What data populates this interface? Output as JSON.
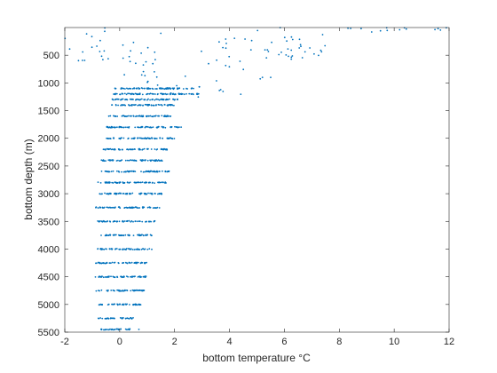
{
  "chart_data": {
    "type": "scatter",
    "title": "",
    "xlabel": "bottom temperature °C",
    "ylabel": "bottom depth (m)",
    "xlim": [
      -2,
      12
    ],
    "ylim": [
      0,
      5500
    ],
    "y_reversed": true,
    "grid": false,
    "legend": "none",
    "x_ticks": [
      -2,
      0,
      2,
      4,
      6,
      8,
      10,
      12
    ],
    "y_ticks": [
      500,
      1000,
      1500,
      2000,
      2500,
      3000,
      3500,
      4000,
      4500,
      5000,
      5500
    ],
    "marker_color": "#0072BD",
    "series": [
      {
        "description": "dense horizontal bands of observations, approximate x-extent per depth level",
        "bands": [
          {
            "depth": 1100,
            "xmin": -0.2,
            "xmax": 2.7
          },
          {
            "depth": 1200,
            "xmin": -0.3,
            "xmax": 2.9
          },
          {
            "depth": 1300,
            "xmin": -0.3,
            "xmax": 2.2
          },
          {
            "depth": 1400,
            "xmin": -0.3,
            "xmax": 2.0
          },
          {
            "depth": 1600,
            "xmin": -0.4,
            "xmax": 1.9
          },
          {
            "depth": 1800,
            "xmin": -0.5,
            "xmax": 2.3
          },
          {
            "depth": 2000,
            "xmin": -0.5,
            "xmax": 2.0
          },
          {
            "depth": 2200,
            "xmin": -0.6,
            "xmax": 1.8
          },
          {
            "depth": 2400,
            "xmin": -0.7,
            "xmax": 1.7
          },
          {
            "depth": 2600,
            "xmin": -0.7,
            "xmax": 1.8
          },
          {
            "depth": 2800,
            "xmin": -0.8,
            "xmax": 1.7
          },
          {
            "depth": 3000,
            "xmin": -0.8,
            "xmax": 1.6
          },
          {
            "depth": 3250,
            "xmin": -0.9,
            "xmax": 1.5
          },
          {
            "depth": 3500,
            "xmin": -0.8,
            "xmax": 1.3
          },
          {
            "depth": 3750,
            "xmin": -0.7,
            "xmax": 1.2
          },
          {
            "depth": 4000,
            "xmin": -0.8,
            "xmax": 1.2
          },
          {
            "depth": 4250,
            "xmin": -0.9,
            "xmax": 1.0
          },
          {
            "depth": 4500,
            "xmin": -0.9,
            "xmax": 1.0
          },
          {
            "depth": 4750,
            "xmin": -0.9,
            "xmax": 0.9
          },
          {
            "depth": 5000,
            "xmin": -0.8,
            "xmax": 0.8
          },
          {
            "depth": 5250,
            "xmin": -0.8,
            "xmax": 0.5
          },
          {
            "depth": 5450,
            "xmin": -0.7,
            "xmax": 0.4
          }
        ],
        "scatter_regions": [
          {
            "xmin": -2.0,
            "xmax": -0.5,
            "ymin": 0,
            "ymax": 450
          },
          {
            "xmin": -2.0,
            "xmax": 0.5,
            "ymin": 400,
            "ymax": 600
          },
          {
            "xmin": 0.0,
            "xmax": 1.5,
            "ymin": 0,
            "ymax": 700
          },
          {
            "xmin": -0.2,
            "xmax": 1.6,
            "ymin": 600,
            "ymax": 1000
          },
          {
            "xmin": 1.3,
            "xmax": 5.2,
            "ymin": 850,
            "ymax": 1300
          },
          {
            "xmin": 2.8,
            "xmax": 5.5,
            "ymin": 400,
            "ymax": 900
          },
          {
            "xmin": 3.5,
            "xmax": 7.5,
            "ymin": 0,
            "ymax": 500
          },
          {
            "xmin": 5.5,
            "xmax": 7.6,
            "ymin": 0,
            "ymax": 450
          },
          {
            "xmin": 6.0,
            "xmax": 7.6,
            "ymin": 350,
            "ymax": 600
          },
          {
            "xmin": 7.5,
            "xmax": 11.8,
            "ymin": 0,
            "ymax": 100
          }
        ],
        "outliers": [
          {
            "x": 9.5,
            "y": 60
          },
          {
            "x": 10.2,
            "y": 40
          },
          {
            "x": 11.6,
            "y": 20
          },
          {
            "x": 11.9,
            "y": 5
          },
          {
            "x": 5.2,
            "y": 900
          },
          {
            "x": 5.5,
            "y": 900
          },
          {
            "x": 0.7,
            "y": 5450
          }
        ]
      }
    ]
  }
}
